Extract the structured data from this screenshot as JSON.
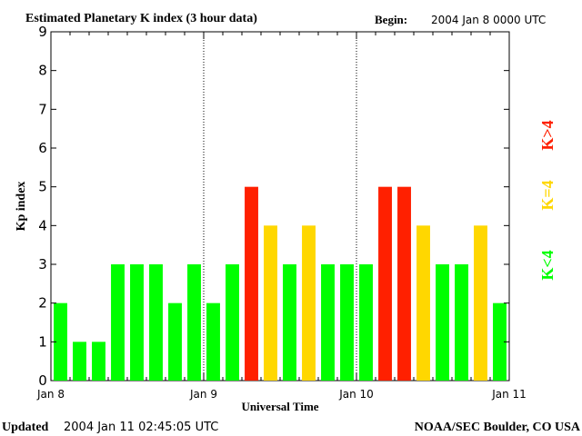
{
  "header": {
    "title": "Estimated Planetary K index (3 hour data)",
    "begin_label": "Begin:",
    "begin_value": "2004 Jan 8 0000 UTC"
  },
  "footer": {
    "updated_label": "Updated",
    "updated_value": "2004 Jan 11 02:45:05 UTC",
    "source": "NOAA/SEC Boulder, CO USA"
  },
  "legend": {
    "low": {
      "text": "K<4",
      "color": "#00ff00"
    },
    "mid": {
      "text": "K=4",
      "color": "#ffd700"
    },
    "high": {
      "text": "K>4",
      "color": "#ff2000"
    }
  },
  "chart_data": {
    "type": "bar",
    "title": "Estimated Planetary K index (3 hour data)",
    "xlabel": "Universal Time",
    "ylabel": "Kp index",
    "ylim": [
      0,
      9
    ],
    "yticks": [
      "0",
      "1",
      "2",
      "3",
      "4",
      "5",
      "6",
      "7",
      "8",
      "9"
    ],
    "xticks": [
      "Jan 8",
      "Jan 9",
      "Jan 10",
      "Jan 11"
    ],
    "bar_interval_hours": 3,
    "values": [
      2,
      1,
      1,
      3,
      3,
      3,
      2,
      3,
      2,
      3,
      5,
      4,
      3,
      4,
      3,
      3,
      3,
      5,
      5,
      4,
      3,
      3,
      4,
      2
    ],
    "colors": {
      "below4": "#00ff00",
      "equal4": "#ffd700",
      "above4": "#ff2000"
    },
    "day_dividers": "dotted",
    "grid": false
  }
}
